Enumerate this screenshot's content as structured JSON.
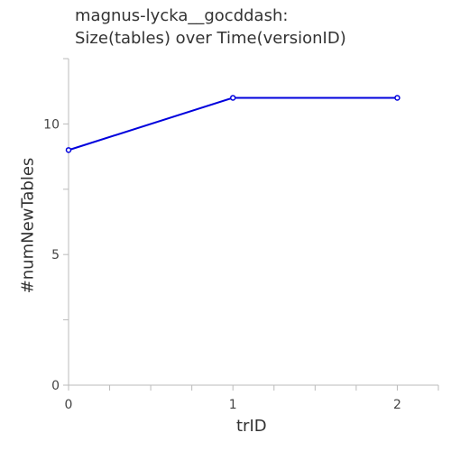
{
  "chart_data": {
    "type": "line",
    "title_lines": [
      "magnus-lycka__gocddash:",
      "Size(tables) over Time(versionID)"
    ],
    "xlabel": "trID",
    "ylabel": "#numNewTables",
    "x": [
      0,
      1,
      2
    ],
    "series": [
      {
        "values": [
          9,
          11,
          11
        ],
        "color": "#0000dd"
      }
    ],
    "xlim": [
      0,
      2.25
    ],
    "ylim": [
      0,
      12.5
    ],
    "x_ticks": [
      0,
      1,
      2
    ],
    "y_ticks": [
      0,
      5,
      10
    ],
    "grid": false,
    "legend": "none"
  }
}
